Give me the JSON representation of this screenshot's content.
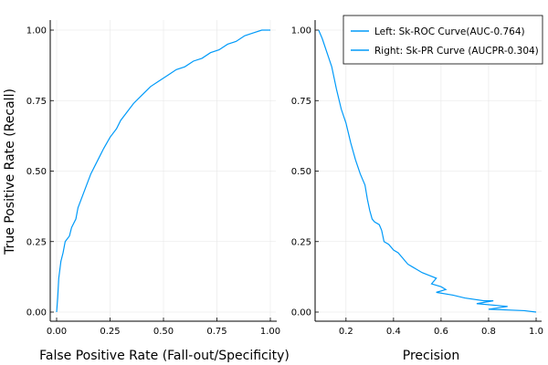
{
  "colors": {
    "series": "#009AF9"
  },
  "chart_data": [
    {
      "type": "line",
      "panel": "left",
      "xlabel": "False Positive Rate (Fall-out/Specificity)",
      "ylabel": "True Positive Rate (Recall)",
      "xlim": [
        0,
        1
      ],
      "ylim": [
        0,
        1
      ],
      "xticks": [
        {
          "v": 0.0,
          "label": "0.00"
        },
        {
          "v": 0.25,
          "label": "0.25"
        },
        {
          "v": 0.5,
          "label": "0.50"
        },
        {
          "v": 0.75,
          "label": "0.75"
        },
        {
          "v": 1.0,
          "label": "1.00"
        }
      ],
      "yticks": [
        {
          "v": 0.0,
          "label": "0.00"
        },
        {
          "v": 0.25,
          "label": "0.25"
        },
        {
          "v": 0.5,
          "label": "0.50"
        },
        {
          "v": 0.75,
          "label": "0.75"
        },
        {
          "v": 1.0,
          "label": "1.00"
        }
      ],
      "grid": true,
      "series": [
        {
          "name": "Left: Sk-ROC Curve(AUC-0.764)",
          "points": [
            [
              0.0,
              0.0
            ],
            [
              0.005,
              0.05
            ],
            [
              0.01,
              0.12
            ],
            [
              0.02,
              0.18
            ],
            [
              0.03,
              0.21
            ],
            [
              0.04,
              0.25
            ],
            [
              0.06,
              0.27
            ],
            [
              0.07,
              0.3
            ],
            [
              0.09,
              0.33
            ],
            [
              0.1,
              0.37
            ],
            [
              0.12,
              0.41
            ],
            [
              0.14,
              0.45
            ],
            [
              0.16,
              0.49
            ],
            [
              0.18,
              0.52
            ],
            [
              0.2,
              0.55
            ],
            [
              0.22,
              0.58
            ],
            [
              0.25,
              0.62
            ],
            [
              0.28,
              0.65
            ],
            [
              0.3,
              0.68
            ],
            [
              0.33,
              0.71
            ],
            [
              0.36,
              0.74
            ],
            [
              0.4,
              0.77
            ],
            [
              0.44,
              0.8
            ],
            [
              0.48,
              0.82
            ],
            [
              0.52,
              0.84
            ],
            [
              0.56,
              0.86
            ],
            [
              0.6,
              0.87
            ],
            [
              0.64,
              0.89
            ],
            [
              0.68,
              0.9
            ],
            [
              0.72,
              0.92
            ],
            [
              0.76,
              0.93
            ],
            [
              0.8,
              0.95
            ],
            [
              0.84,
              0.96
            ],
            [
              0.88,
              0.98
            ],
            [
              0.92,
              0.99
            ],
            [
              0.96,
              1.0
            ],
            [
              1.0,
              1.0
            ]
          ]
        }
      ]
    },
    {
      "type": "line",
      "panel": "right",
      "xlabel": "Precision",
      "ylabel": "",
      "xlim": [
        0.07,
        1.0
      ],
      "ylim": [
        0,
        1
      ],
      "xticks": [
        {
          "v": 0.2,
          "label": "0.2"
        },
        {
          "v": 0.4,
          "label": "0.4"
        },
        {
          "v": 0.6,
          "label": "0.6"
        },
        {
          "v": 0.8,
          "label": "0.8"
        },
        {
          "v": 1.0,
          "label": "1.0"
        }
      ],
      "yticks": [
        {
          "v": 0.0,
          "label": "0.00"
        },
        {
          "v": 0.25,
          "label": "0.25"
        },
        {
          "v": 0.5,
          "label": "0.50"
        },
        {
          "v": 0.75,
          "label": "0.75"
        },
        {
          "v": 1.0,
          "label": "1.00"
        }
      ],
      "grid": true,
      "legend": "top-right",
      "series": [
        {
          "name": "Right: Sk-PR Curve (AUCPR-0.304)",
          "points": [
            [
              0.085,
              1.0
            ],
            [
              0.09,
              0.99
            ],
            [
              0.1,
              0.97
            ],
            [
              0.12,
              0.92
            ],
            [
              0.14,
              0.87
            ],
            [
              0.15,
              0.83
            ],
            [
              0.16,
              0.79
            ],
            [
              0.18,
              0.72
            ],
            [
              0.2,
              0.67
            ],
            [
              0.22,
              0.6
            ],
            [
              0.24,
              0.54
            ],
            [
              0.26,
              0.49
            ],
            [
              0.28,
              0.45
            ],
            [
              0.29,
              0.4
            ],
            [
              0.3,
              0.36
            ],
            [
              0.31,
              0.33
            ],
            [
              0.32,
              0.32
            ],
            [
              0.34,
              0.31
            ],
            [
              0.35,
              0.29
            ],
            [
              0.36,
              0.25
            ],
            [
              0.38,
              0.24
            ],
            [
              0.4,
              0.22
            ],
            [
              0.42,
              0.21
            ],
            [
              0.43,
              0.2
            ],
            [
              0.44,
              0.19
            ],
            [
              0.46,
              0.17
            ],
            [
              0.48,
              0.16
            ],
            [
              0.5,
              0.15
            ],
            [
              0.52,
              0.14
            ],
            [
              0.55,
              0.13
            ],
            [
              0.58,
              0.12
            ],
            [
              0.56,
              0.1
            ],
            [
              0.6,
              0.09
            ],
            [
              0.62,
              0.08
            ],
            [
              0.58,
              0.07
            ],
            [
              0.65,
              0.06
            ],
            [
              0.7,
              0.05
            ],
            [
              0.78,
              0.04
            ],
            [
              0.82,
              0.04
            ],
            [
              0.75,
              0.03
            ],
            [
              0.88,
              0.02
            ],
            [
              0.8,
              0.01
            ],
            [
              0.95,
              0.005
            ],
            [
              1.0,
              0.0
            ]
          ]
        }
      ]
    }
  ]
}
